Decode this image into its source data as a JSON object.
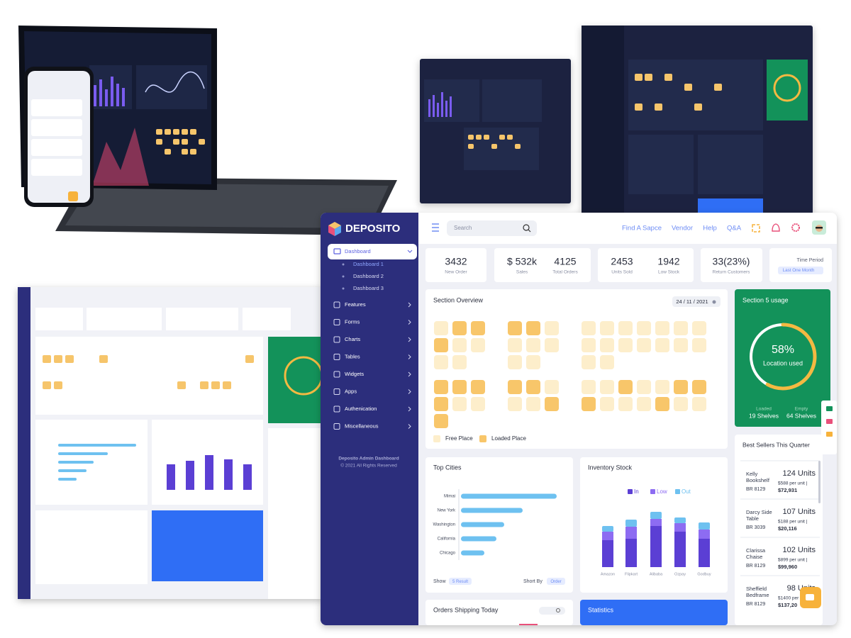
{
  "brand": "DEPOSITO",
  "sidebar": {
    "active": "Dashboard",
    "submenu": [
      "Dashboard 1",
      "Dashboard 2",
      "Dashboard 3"
    ],
    "menu": [
      "Features",
      "Forms",
      "Charts",
      "Tables",
      "Widgets",
      "Apps",
      "Authenication",
      "Miscellaneous"
    ],
    "footer": [
      "Deposito Admin Dashboard",
      "© 2021 All Rights Reserved"
    ]
  },
  "topbar": {
    "search": "Search",
    "links": [
      "Find A Sapce",
      "Vendor",
      "Help",
      "Q&A"
    ]
  },
  "stat_cards": [
    [
      {
        "value": "3432",
        "label": "New Order"
      }
    ],
    [
      {
        "value": "$ 532k",
        "label": "Sales"
      },
      {
        "value": "4125",
        "label": "Total Orders"
      }
    ],
    [
      {
        "value": "2453",
        "label": "Units Sold"
      },
      {
        "value": "1942",
        "label": "Low Stock"
      }
    ],
    [
      {
        "value": "33(23%)",
        "label": "Return Customers"
      }
    ]
  ],
  "time_period": {
    "label": "Time Period",
    "value": "Last One Month"
  },
  "section_overview": {
    "title": "Section Overview",
    "date": "24 / 11 / 2021",
    "blocks": [
      [
        "FLL",
        "LFF",
        "FF"
      ],
      [
        "LLF",
        "FFF",
        "FF"
      ],
      [
        "FFFFFFF",
        "FFFFFFF",
        "FF"
      ],
      [
        "LLL",
        "LFF",
        "L"
      ],
      [
        "LLF",
        "FFL",
        ""
      ],
      [
        "FFLFFLL",
        "LFFFLFF",
        ""
      ]
    ],
    "legend": [
      "Free Place",
      "Loaded Place"
    ]
  },
  "usage": {
    "title": "Section 5 usage",
    "percent": 58,
    "percent_label": "58%",
    "caption": "Location used",
    "loaded_label": "Loaded",
    "loaded": "19 Shelves",
    "empty_label": "Empty",
    "empty": "64 Shelves"
  },
  "best_sellers": {
    "title": "Best Sellers This Quarter",
    "items": [
      {
        "name": "Kelly Bookshelf",
        "code": "BR 8129",
        "units": "124 Units",
        "price": "$588 per unit |",
        "total": "$72,931"
      },
      {
        "name": "Darcy Side Table",
        "code": "BR 3039",
        "units": "107 Units",
        "price": "$188 per unit |",
        "total": "$20,116"
      },
      {
        "name": "Clarissa Chaise",
        "code": "BR 8129",
        "units": "102 Units",
        "price": "$899 per unit |",
        "total": "$99,960"
      },
      {
        "name": "Sheffield Bedframe",
        "code": "BR 8129",
        "units": "98 Units",
        "price": "$1400 per unit |",
        "total": "$137,20"
      }
    ]
  },
  "chart_data": [
    {
      "type": "hbar",
      "title": "Top Cities",
      "categories": [
        "Mimai",
        "New York",
        "Washington",
        "California",
        "Chicago"
      ],
      "values": [
        135,
        87,
        61,
        50,
        33
      ],
      "xlim": [
        0,
        140
      ],
      "color": "#6ec1f0",
      "show_label": "Show",
      "show_value": "5 Result",
      "sort_label": "Short By",
      "sort_value": "Order"
    },
    {
      "type": "stacked_bar",
      "title": "Inventory Stock",
      "categories": [
        "Amazon",
        "Flipkart",
        "Alibaba",
        "Ozpay",
        "Godbuy"
      ],
      "series": [
        {
          "name": "In",
          "color": "#5b3fd4",
          "values": [
            38,
            40,
            58,
            50,
            40
          ]
        },
        {
          "name": "Low",
          "color": "#8d6cf2",
          "values": [
            12,
            17,
            10,
            12,
            13
          ]
        },
        {
          "name": "Out",
          "color": "#6ec1f0",
          "values": [
            8,
            10,
            10,
            8,
            10
          ]
        }
      ],
      "ylim": [
        0,
        100
      ]
    }
  ],
  "orders": {
    "title": "Orders Shipping Today"
  },
  "statistics": {
    "title": "Statistics"
  }
}
